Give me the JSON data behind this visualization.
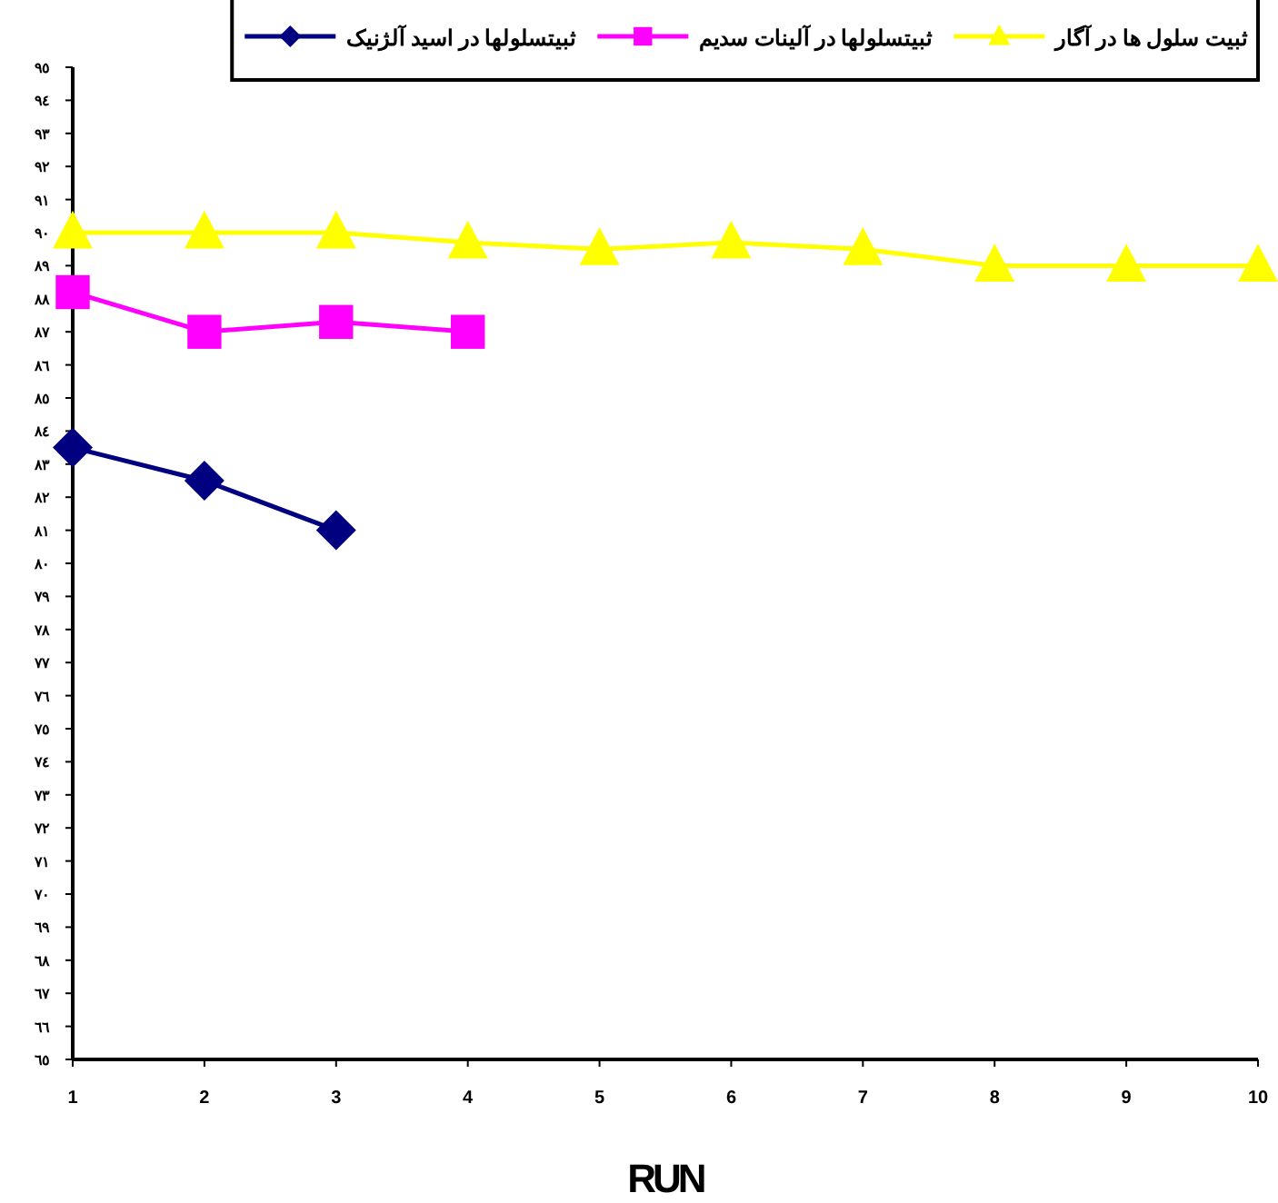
{
  "chart_data": {
    "type": "line",
    "xlabel": "RUN",
    "x": [
      1,
      2,
      3,
      4,
      5,
      6,
      7,
      8,
      9,
      10
    ],
    "xlim": [
      1,
      10
    ],
    "xticks": [
      1,
      2,
      3,
      4,
      5,
      6,
      7,
      8,
      9,
      10
    ],
    "ylim": [
      65,
      95
    ],
    "yticks": [
      {
        "value": 65,
        "label": "٦٥"
      },
      {
        "value": 66,
        "label": "٦٦"
      },
      {
        "value": 67,
        "label": "٦٧"
      },
      {
        "value": 68,
        "label": "٦٨"
      },
      {
        "value": 69,
        "label": "٦٩"
      },
      {
        "value": 70,
        "label": "٧٠"
      },
      {
        "value": 71,
        "label": "٧١"
      },
      {
        "value": 72,
        "label": "٧٢"
      },
      {
        "value": 73,
        "label": "٧٣"
      },
      {
        "value": 74,
        "label": "٧٤"
      },
      {
        "value": 75,
        "label": "٧٥"
      },
      {
        "value": 76,
        "label": "٧٦"
      },
      {
        "value": 77,
        "label": "٧٧"
      },
      {
        "value": 78,
        "label": "٧٨"
      },
      {
        "value": 79,
        "label": "٧٩"
      },
      {
        "value": 80,
        "label": "٨٠"
      },
      {
        "value": 81,
        "label": "٨١"
      },
      {
        "value": 82,
        "label": "٨٢"
      },
      {
        "value": 83,
        "label": "٨٣"
      },
      {
        "value": 84,
        "label": "٨٤"
      },
      {
        "value": 85,
        "label": "٨٥"
      },
      {
        "value": 86,
        "label": "٨٦"
      },
      {
        "value": 87,
        "label": "٨٧"
      },
      {
        "value": 88,
        "label": "٨٨"
      },
      {
        "value": 89,
        "label": "٨٩"
      },
      {
        "value": 90,
        "label": "٩٠"
      },
      {
        "value": 91,
        "label": "٩١"
      },
      {
        "value": 92,
        "label": "٩٢"
      },
      {
        "value": 93,
        "label": "٩٣"
      },
      {
        "value": 94,
        "label": "٩٤"
      },
      {
        "value": 95,
        "label": "٩٥"
      }
    ],
    "legend": "top",
    "grid": false,
    "line_style": "solid",
    "series": [
      {
        "name": "ثبیت سلول ها در آگار",
        "color": "#ffff00",
        "marker": "triangle",
        "values": [
          90,
          90,
          90,
          89.7,
          89.5,
          89.7,
          89.5,
          89,
          89,
          89
        ]
      },
      {
        "name": "ثبیتسلولها در آلینات سدیم",
        "color": "#ff00ff",
        "marker": "square",
        "values": [
          88.2,
          87,
          87.3,
          87,
          null,
          null,
          null,
          null,
          null,
          null
        ]
      },
      {
        "name": "ثبیتسلولها در اسید آلژنیک",
        "color": "#000080",
        "marker": "diamond",
        "values": [
          83.5,
          82.5,
          81,
          null,
          null,
          null,
          null,
          null,
          null,
          null
        ]
      }
    ]
  }
}
